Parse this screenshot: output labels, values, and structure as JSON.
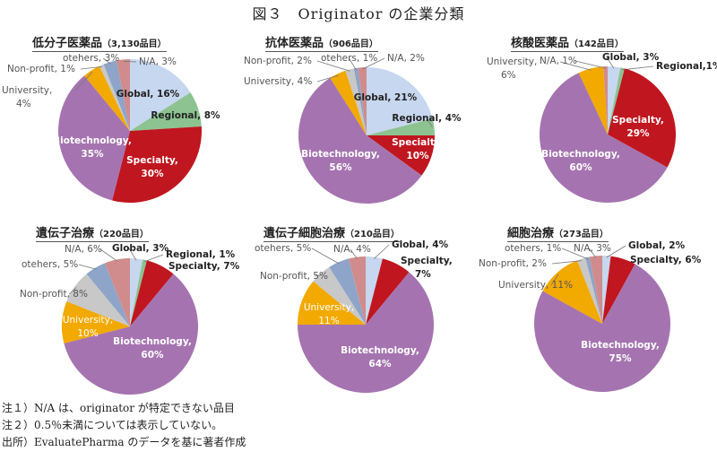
{
  "figure": {
    "title": "図３　Originator の企業分類"
  },
  "colors": {
    "Global": "#c6d7ef",
    "Regional": "#8cc391",
    "Specialty": "#c0161f",
    "Biotechnology": "#a574b0",
    "University": "#f2a900",
    "Non-profit": "#c8c8c8",
    "otehers": "#8ea4c8",
    "N/A": "#d08c8c"
  },
  "panels": [
    {
      "title": "低分子医薬品",
      "count": "（3,130品目）"
    },
    {
      "title": "抗体医薬品",
      "count": "（906品目）"
    },
    {
      "title": "核酸医薬品",
      "count": "（142品目）"
    },
    {
      "title": "遺伝子治療",
      "count": "（220品目）"
    },
    {
      "title": "遺伝子細胞治療",
      "count": "（210品目）"
    },
    {
      "title": "細胞治療",
      "count": "（273品目）"
    }
  ],
  "notes": [
    "注１）N/A は、originator が特定できない品目",
    "注２）0.5％未満については表示していない。",
    "出所）EvaluatePharma のデータを基に著者作成"
  ],
  "chart_data": [
    {
      "type": "pie",
      "title": "低分子医薬品（3,130品目）",
      "categories": [
        "Global",
        "Regional",
        "Specialty",
        "Biotechnology",
        "University",
        "Non-profit",
        "otehers",
        "N/A"
      ],
      "values": [
        16,
        8,
        30,
        35,
        4,
        1,
        3,
        3
      ],
      "labels": [
        "Global, 16%",
        "Regional, 8%",
        "Specialty, 30%",
        "Biotechnology, 35%",
        "University, 4%",
        "Non-profit, 1%",
        "otehers, 3%",
        "N/A, 3%"
      ]
    },
    {
      "type": "pie",
      "title": "抗体医薬品（906品目）",
      "categories": [
        "Global",
        "Regional",
        "Specialty",
        "Biotechnology",
        "University",
        "Non-profit",
        "otehers",
        "N/A"
      ],
      "values": [
        21,
        4,
        10,
        56,
        4,
        2,
        1,
        2
      ],
      "labels": [
        "Global, 21%",
        "Regional, 4%",
        "Specialty, 10%",
        "Biotechnology, 56%",
        "University, 4%",
        "Non-profit, 2%",
        "otehers, 1%",
        "N/A, 2%"
      ]
    },
    {
      "type": "pie",
      "title": "核酸医薬品（142品目）",
      "categories": [
        "Global",
        "Regional",
        "Specialty",
        "Biotechnology",
        "University",
        "N/A"
      ],
      "values": [
        3,
        1,
        29,
        60,
        6,
        1
      ],
      "labels": [
        "Global, 3%",
        "Regional,1%",
        "Specialty, 29%",
        "Biotechnology, 60%",
        "University, 6%",
        "N/A, 1%"
      ]
    },
    {
      "type": "pie",
      "title": "遺伝子治療（220品目）",
      "categories": [
        "Global",
        "Regional",
        "Specialty",
        "Biotechnology",
        "University",
        "Non-profit",
        "otehers",
        "N/A"
      ],
      "values": [
        3,
        1,
        7,
        60,
        10,
        8,
        5,
        6
      ],
      "labels": [
        "Global, 3%",
        "Regional, 1%",
        "Specialty, 7%",
        "Biotechnology, 60%",
        "University, 10%",
        "Non-profit, 8%",
        "otehers, 5%",
        "N/A, 6%"
      ]
    },
    {
      "type": "pie",
      "title": "遺伝子細胞治療（210品目）",
      "categories": [
        "Global",
        "Specialty",
        "Biotechnology",
        "University",
        "Non-profit",
        "otehers",
        "N/A"
      ],
      "values": [
        4,
        7,
        64,
        11,
        5,
        5,
        4
      ],
      "labels": [
        "Global, 4%",
        "Specialty, 7%",
        "Biotechnology, 64%",
        "University, 11%",
        "Non-profit, 5%",
        "otehers, 5%",
        "N/A, 4%"
      ]
    },
    {
      "type": "pie",
      "title": "細胞治療（273品目）",
      "categories": [
        "Global",
        "Specialty",
        "Biotechnology",
        "University",
        "Non-profit",
        "otehers",
        "N/A"
      ],
      "values": [
        2,
        6,
        75,
        11,
        2,
        1,
        3
      ],
      "labels": [
        "Global, 2%",
        "Specialty, 6%",
        "Biotechnology, 75%",
        "University, 11%",
        "Non-profit, 2%",
        "otehers, 1%",
        "N/A, 3%"
      ]
    }
  ]
}
